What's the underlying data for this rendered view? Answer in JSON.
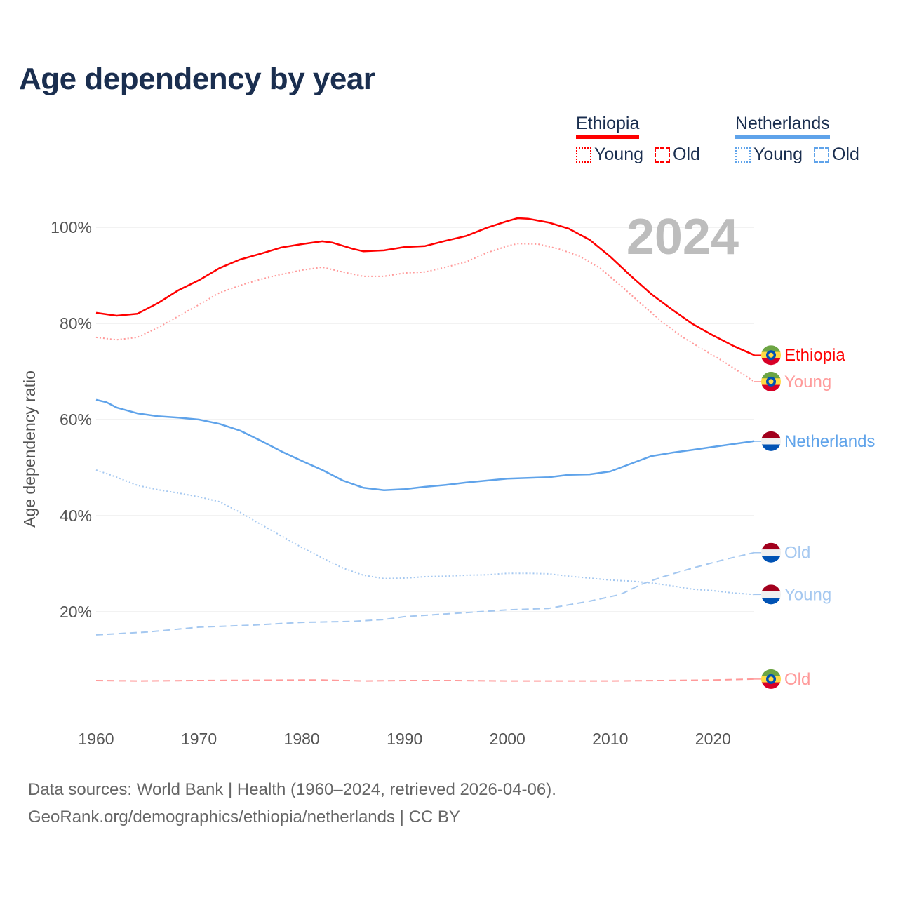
{
  "title": "Age dependency by year",
  "legend": {
    "groups": [
      {
        "name": "Ethiopia",
        "color": "#ff0000",
        "items": [
          {
            "label": "Young",
            "style": "dotted"
          },
          {
            "label": "Old",
            "style": "dashed"
          }
        ]
      },
      {
        "name": "Netherlands",
        "color": "#5fa3ea",
        "items": [
          {
            "label": "Young",
            "style": "dotted"
          },
          {
            "label": "Old",
            "style": "dashed"
          }
        ]
      }
    ]
  },
  "source": {
    "line1": "Data sources: World Bank | Health (1960–2024, retrieved 2026-04-06).",
    "line2": "GeoRank.org/demographics/ethiopia/netherlands | CC BY"
  },
  "chart_data": {
    "type": "line",
    "title": "Age dependency by year",
    "ylabel": "Age dependency ratio",
    "xlabel": "",
    "year_watermark": "2024",
    "xlim": [
      1960,
      2024
    ],
    "ylim": [
      0,
      100
    ],
    "x_ticks": [
      1960,
      1970,
      1980,
      1990,
      2000,
      2010,
      2020
    ],
    "x_tick_labels": [
      "1960",
      "1970",
      "1980",
      "1990",
      "2000",
      "2010",
      "2020"
    ],
    "y_ticks": [
      20,
      40,
      60,
      80,
      100
    ],
    "y_tick_labels": [
      "20%",
      "40%",
      "60%",
      "80%",
      "100%"
    ],
    "grid": true,
    "series": [
      {
        "name": "Ethiopia",
        "end_label": "Ethiopia",
        "country": "ethiopia",
        "color": "#ff0000",
        "dash": "solid",
        "points": [
          [
            1960,
            82.2
          ],
          [
            1962,
            81.6
          ],
          [
            1964,
            82
          ],
          [
            1966,
            84.2
          ],
          [
            1968,
            86.9
          ],
          [
            1970,
            89
          ],
          [
            1972,
            91.5
          ],
          [
            1974,
            93.3
          ],
          [
            1976,
            94.5
          ],
          [
            1978,
            95.8
          ],
          [
            1980,
            96.5
          ],
          [
            1982,
            97.1
          ],
          [
            1983,
            96.8
          ],
          [
            1985,
            95.5
          ],
          [
            1986,
            95
          ],
          [
            1988,
            95.2
          ],
          [
            1990,
            95.9
          ],
          [
            1992,
            96.1
          ],
          [
            1994,
            97.2
          ],
          [
            1996,
            98.2
          ],
          [
            1998,
            99.9
          ],
          [
            2000,
            101.3
          ],
          [
            2001,
            101.9
          ],
          [
            2002,
            101.8
          ],
          [
            2004,
            101
          ],
          [
            2006,
            99.7
          ],
          [
            2008,
            97.4
          ],
          [
            2010,
            93.9
          ],
          [
            2012,
            89.9
          ],
          [
            2014,
            86.1
          ],
          [
            2016,
            82.9
          ],
          [
            2018,
            79.9
          ],
          [
            2020,
            77.5
          ],
          [
            2022,
            75.3
          ],
          [
            2024,
            73.4
          ]
        ]
      },
      {
        "name": "Ethiopia Young",
        "end_label": "Young",
        "country": "ethiopia",
        "color": "#ff9a9a",
        "dash": "dotted",
        "points": [
          [
            1960,
            77.1
          ],
          [
            1962,
            76.6
          ],
          [
            1964,
            77.1
          ],
          [
            1966,
            79.1
          ],
          [
            1968,
            81.5
          ],
          [
            1970,
            83.9
          ],
          [
            1972,
            86.4
          ],
          [
            1974,
            87.9
          ],
          [
            1976,
            89.2
          ],
          [
            1978,
            90.2
          ],
          [
            1980,
            91.1
          ],
          [
            1982,
            91.7
          ],
          [
            1984,
            90.7
          ],
          [
            1986,
            89.8
          ],
          [
            1988,
            89.8
          ],
          [
            1990,
            90.5
          ],
          [
            1992,
            90.7
          ],
          [
            1994,
            91.7
          ],
          [
            1996,
            92.8
          ],
          [
            1998,
            94.7
          ],
          [
            2000,
            96.1
          ],
          [
            2001,
            96.6
          ],
          [
            2003,
            96.5
          ],
          [
            2005,
            95.5
          ],
          [
            2007,
            94
          ],
          [
            2009,
            91.5
          ],
          [
            2011,
            87.9
          ],
          [
            2013,
            84.1
          ],
          [
            2015,
            80.4
          ],
          [
            2017,
            77.2
          ],
          [
            2019,
            74.6
          ],
          [
            2021,
            72.1
          ],
          [
            2024,
            67.9
          ]
        ]
      },
      {
        "name": "Ethiopia Old",
        "end_label": "Old",
        "country": "ethiopia",
        "color": "#ff9a9a",
        "dash": "dashed",
        "points": [
          [
            1960,
            5.7
          ],
          [
            1964,
            5.6
          ],
          [
            1970,
            5.7
          ],
          [
            1980,
            5.8
          ],
          [
            1982,
            5.8
          ],
          [
            1986,
            5.6
          ],
          [
            1990,
            5.7
          ],
          [
            1995,
            5.7
          ],
          [
            2000,
            5.6
          ],
          [
            2010,
            5.6
          ],
          [
            2015,
            5.7
          ],
          [
            2020,
            5.8
          ],
          [
            2024,
            6.0
          ]
        ]
      },
      {
        "name": "Netherlands",
        "end_label": "Netherlands",
        "country": "netherlands",
        "color": "#5fa3ea",
        "dash": "solid",
        "points": [
          [
            1960,
            64.1
          ],
          [
            1961,
            63.6
          ],
          [
            1962,
            62.5
          ],
          [
            1964,
            61.3
          ],
          [
            1966,
            60.7
          ],
          [
            1968,
            60.4
          ],
          [
            1970,
            60
          ],
          [
            1972,
            59.1
          ],
          [
            1974,
            57.7
          ],
          [
            1976,
            55.6
          ],
          [
            1978,
            53.4
          ],
          [
            1980,
            51.4
          ],
          [
            1982,
            49.5
          ],
          [
            1984,
            47.3
          ],
          [
            1986,
            45.8
          ],
          [
            1988,
            45.3
          ],
          [
            1990,
            45.5
          ],
          [
            1992,
            46
          ],
          [
            1994,
            46.4
          ],
          [
            1996,
            46.9
          ],
          [
            1998,
            47.3
          ],
          [
            2000,
            47.7
          ],
          [
            2004,
            48
          ],
          [
            2006,
            48.5
          ],
          [
            2008,
            48.6
          ],
          [
            2010,
            49.2
          ],
          [
            2012,
            50.8
          ],
          [
            2014,
            52.4
          ],
          [
            2016,
            53.1
          ],
          [
            2018,
            53.7
          ],
          [
            2020,
            54.3
          ],
          [
            2022,
            54.9
          ],
          [
            2024,
            55.5
          ]
        ]
      },
      {
        "name": "Netherlands Old",
        "end_label": "Old",
        "country": "netherlands",
        "color": "#a5c8f0",
        "dash": "dashed",
        "points": [
          [
            1960,
            15.2
          ],
          [
            1965,
            15.8
          ],
          [
            1970,
            16.8
          ],
          [
            1975,
            17.2
          ],
          [
            1980,
            17.8
          ],
          [
            1985,
            18
          ],
          [
            1988,
            18.4
          ],
          [
            1990,
            19
          ],
          [
            1995,
            19.7
          ],
          [
            2000,
            20.4
          ],
          [
            2004,
            20.7
          ],
          [
            2008,
            22.2
          ],
          [
            2011,
            23.6
          ],
          [
            2013,
            25.7
          ],
          [
            2015,
            27.2
          ],
          [
            2018,
            29.1
          ],
          [
            2021,
            30.8
          ],
          [
            2024,
            32.3
          ]
        ]
      },
      {
        "name": "Netherlands Young",
        "end_label": "Young",
        "country": "netherlands",
        "color": "#a5c8f0",
        "dash": "dotted",
        "points": [
          [
            1960,
            49.5
          ],
          [
            1962,
            48
          ],
          [
            1964,
            46.3
          ],
          [
            1966,
            45.4
          ],
          [
            1968,
            44.7
          ],
          [
            1970,
            43.9
          ],
          [
            1972,
            42.9
          ],
          [
            1974,
            40.7
          ],
          [
            1976,
            38.2
          ],
          [
            1978,
            35.8
          ],
          [
            1980,
            33.4
          ],
          [
            1982,
            31.2
          ],
          [
            1984,
            29.1
          ],
          [
            1986,
            27.6
          ],
          [
            1988,
            26.9
          ],
          [
            1990,
            27
          ],
          [
            1992,
            27.3
          ],
          [
            1994,
            27.4
          ],
          [
            1996,
            27.6
          ],
          [
            1998,
            27.7
          ],
          [
            2000,
            28
          ],
          [
            2002,
            28
          ],
          [
            2004,
            27.9
          ],
          [
            2006,
            27.4
          ],
          [
            2008,
            27
          ],
          [
            2010,
            26.6
          ],
          [
            2012,
            26.4
          ],
          [
            2014,
            26
          ],
          [
            2016,
            25.4
          ],
          [
            2018,
            24.7
          ],
          [
            2020,
            24.4
          ],
          [
            2022,
            23.9
          ],
          [
            2024,
            23.6
          ]
        ]
      }
    ]
  }
}
